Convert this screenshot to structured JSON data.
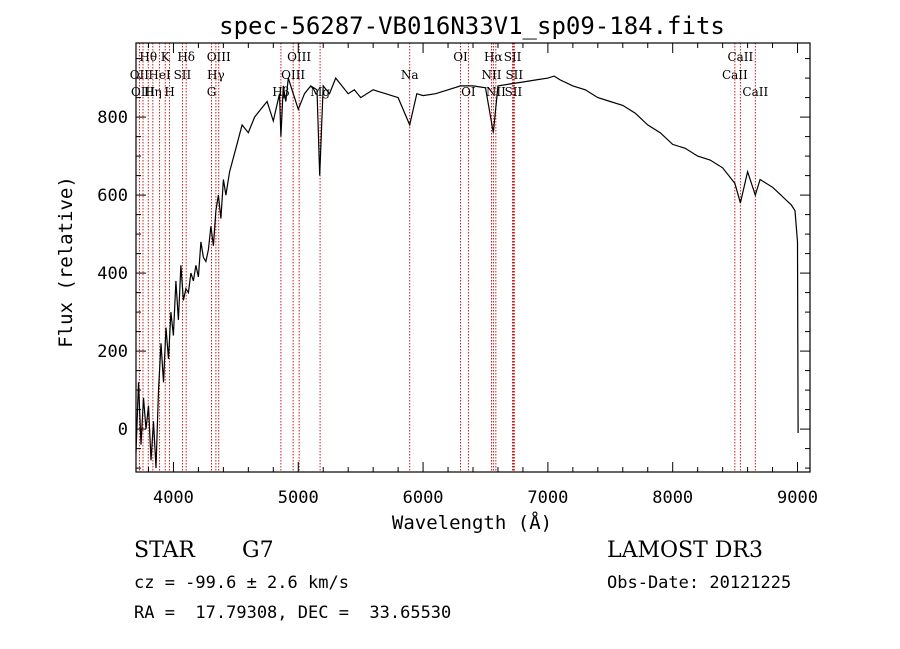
{
  "chart_data": {
    "type": "line",
    "title": "spec-56287-VB016N33V1_sp09-184.fits",
    "xlabel": "Wavelength (Å)",
    "ylabel": "Flux (relative)",
    "xlim": [
      3700,
      9100
    ],
    "ylim": [
      -110,
      990
    ],
    "xticks": [
      4000,
      5000,
      6000,
      7000,
      8000,
      9000
    ],
    "yticks": [
      0,
      200,
      400,
      600,
      800
    ],
    "xtick_labels": [
      "4000",
      "5000",
      "6000",
      "7000",
      "8000",
      "9000"
    ],
    "ytick_labels": [
      "0",
      "200",
      "400",
      "600",
      "800"
    ],
    "series": [
      {
        "name": "flux",
        "x": [
          3700,
          3720,
          3740,
          3760,
          3780,
          3800,
          3820,
          3840,
          3860,
          3880,
          3900,
          3920,
          3940,
          3960,
          3980,
          4000,
          4020,
          4040,
          4060,
          4080,
          4100,
          4120,
          4140,
          4160,
          4180,
          4200,
          4220,
          4240,
          4260,
          4280,
          4300,
          4320,
          4340,
          4360,
          4380,
          4400,
          4420,
          4450,
          4500,
          4550,
          4600,
          4650,
          4700,
          4750,
          4800,
          4850,
          4861,
          4880,
          4900,
          4920,
          4950,
          5000,
          5050,
          5100,
          5150,
          5172,
          5200,
          5250,
          5300,
          5350,
          5400,
          5450,
          5500,
          5600,
          5700,
          5800,
          5893,
          5950,
          6000,
          6100,
          6200,
          6300,
          6400,
          6500,
          6563,
          6600,
          6700,
          6800,
          6900,
          7000,
          7050,
          7100,
          7200,
          7300,
          7400,
          7500,
          7600,
          7700,
          7800,
          7900,
          8000,
          8100,
          8200,
          8300,
          8400,
          8498,
          8542,
          8600,
          8662,
          8700,
          8800,
          8850,
          8900,
          8950,
          8980,
          9000,
          9005
        ],
        "y": [
          -60,
          120,
          -40,
          80,
          0,
          60,
          -80,
          20,
          -100,
          100,
          220,
          120,
          260,
          180,
          300,
          240,
          380,
          280,
          420,
          330,
          360,
          350,
          400,
          380,
          420,
          390,
          480,
          440,
          430,
          460,
          520,
          470,
          560,
          600,
          540,
          640,
          600,
          660,
          720,
          780,
          760,
          800,
          820,
          840,
          790,
          860,
          750,
          880,
          840,
          900,
          870,
          820,
          860,
          880,
          870,
          650,
          880,
          860,
          900,
          880,
          860,
          870,
          850,
          870,
          860,
          850,
          780,
          860,
          855,
          860,
          870,
          880,
          880,
          875,
          760,
          880,
          885,
          890,
          895,
          900,
          905,
          895,
          880,
          870,
          850,
          840,
          830,
          810,
          780,
          760,
          730,
          720,
          700,
          690,
          670,
          630,
          580,
          660,
          600,
          640,
          620,
          605,
          590,
          575,
          560,
          480,
          -10
        ]
      }
    ],
    "spectral_lines": [
      {
        "label": "Hθ",
        "x": 3798,
        "row": 0
      },
      {
        "label": "OII",
        "x": 3727,
        "row": 1
      },
      {
        "label": "OIII",
        "x": 3756,
        "row": 2
      },
      {
        "label": "K",
        "x": 3934,
        "row": 0
      },
      {
        "label": "HeI",
        "x": 3889,
        "row": 1
      },
      {
        "label": "Hη",
        "x": 3835,
        "row": 2
      },
      {
        "label": "H",
        "x": 3969,
        "row": 2
      },
      {
        "label": "Hδ",
        "x": 4102,
        "row": 0
      },
      {
        "label": "SII",
        "x": 4072,
        "row": 1
      },
      {
        "label": "OIII",
        "x": 4363,
        "row": 0
      },
      {
        "label": "Hγ",
        "x": 4340,
        "row": 1
      },
      {
        "label": "G",
        "x": 4305,
        "row": 2
      },
      {
        "label": "OIII",
        "x": 5007,
        "row": 0
      },
      {
        "label": "OIII",
        "x": 4959,
        "row": 1
      },
      {
        "label": "Hβ",
        "x": 4861,
        "row": 2
      },
      {
        "label": "Mg",
        "x": 5175,
        "row": 2
      },
      {
        "label": "Na",
        "x": 5893,
        "row": 1
      },
      {
        "label": "OI",
        "x": 6300,
        "row": 0
      },
      {
        "label": "OI",
        "x": 6363,
        "row": 2
      },
      {
        "label": "Hα",
        "x": 6563,
        "row": 0
      },
      {
        "label": "SII",
        "x": 6717,
        "row": 0
      },
      {
        "label": "NII",
        "x": 6548,
        "row": 1
      },
      {
        "label": "SII",
        "x": 6731,
        "row": 1
      },
      {
        "label": "NII",
        "x": 6583,
        "row": 2
      },
      {
        "label": "SII",
        "x": 6724,
        "row": 2
      },
      {
        "label": "CaII",
        "x": 8542,
        "row": 0
      },
      {
        "label": "CaII",
        "x": 8498,
        "row": 1
      },
      {
        "label": "CaII",
        "x": 8662,
        "row": 2
      }
    ]
  },
  "footer": {
    "class_label": "STAR",
    "subclass": "G7",
    "survey": "LAMOST DR3",
    "redshift": "cz = -99.6 ± 2.6 km/s",
    "obs_date": "Obs-Date: 20121225",
    "coords": "RA =  17.79308, DEC =  33.65530"
  },
  "colors": {
    "line": "#000000",
    "marker": "#cc0000",
    "background": "#ffffff"
  }
}
